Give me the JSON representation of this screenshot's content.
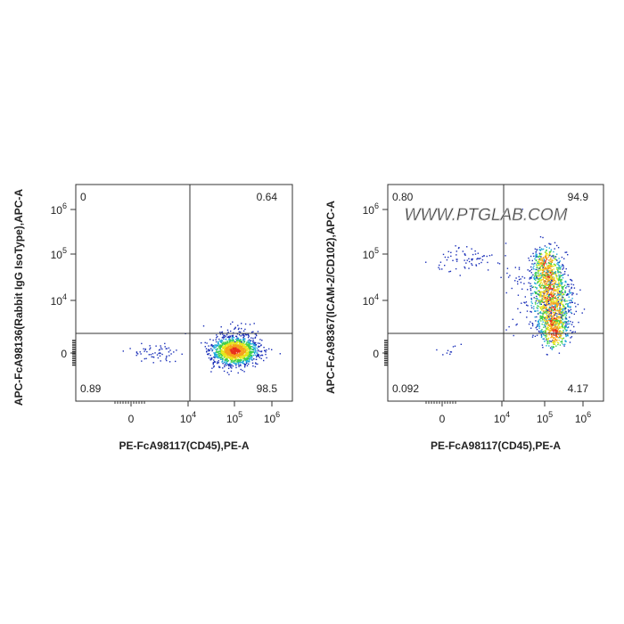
{
  "panels": [
    {
      "y_label": "APC-FcA98136(Rabbit IgG IsoType),APC-A",
      "x_label": "PE-FcA98117(CD45),PE-A",
      "quadrants": {
        "upper_left": "0",
        "upper_right": "0.64",
        "lower_left": "0.89",
        "lower_right": "98.5"
      },
      "x_ticks": [
        {
          "base": "0"
        },
        {
          "base": "10",
          "exponent": "4"
        },
        {
          "base": "10",
          "exponent": "5"
        },
        {
          "base": "10",
          "exponent": "6"
        }
      ],
      "y_ticks": [
        {
          "base": "10",
          "exponent": "6"
        },
        {
          "base": "10",
          "exponent": "5"
        },
        {
          "base": "10",
          "exponent": "4"
        },
        {
          "base": "0"
        }
      ]
    },
    {
      "y_label": "APC-FcA98367(ICAM-2/CD102),APC-A",
      "x_label": "PE-FcA98117(CD45),PE-A",
      "quadrants": {
        "upper_left": "0.80",
        "upper_right": "94.9",
        "lower_left": "0.092",
        "lower_right": "4.17"
      },
      "x_ticks": [
        {
          "base": "0"
        },
        {
          "base": "10",
          "exponent": "4"
        },
        {
          "base": "10",
          "exponent": "5"
        },
        {
          "base": "10",
          "exponent": "6"
        }
      ],
      "y_ticks": [
        {
          "base": "10",
          "exponent": "6"
        },
        {
          "base": "10",
          "exponent": "5"
        },
        {
          "base": "10",
          "exponent": "4"
        },
        {
          "base": "0"
        }
      ]
    }
  ],
  "watermark": "WWW.PTGLAB.COM"
}
